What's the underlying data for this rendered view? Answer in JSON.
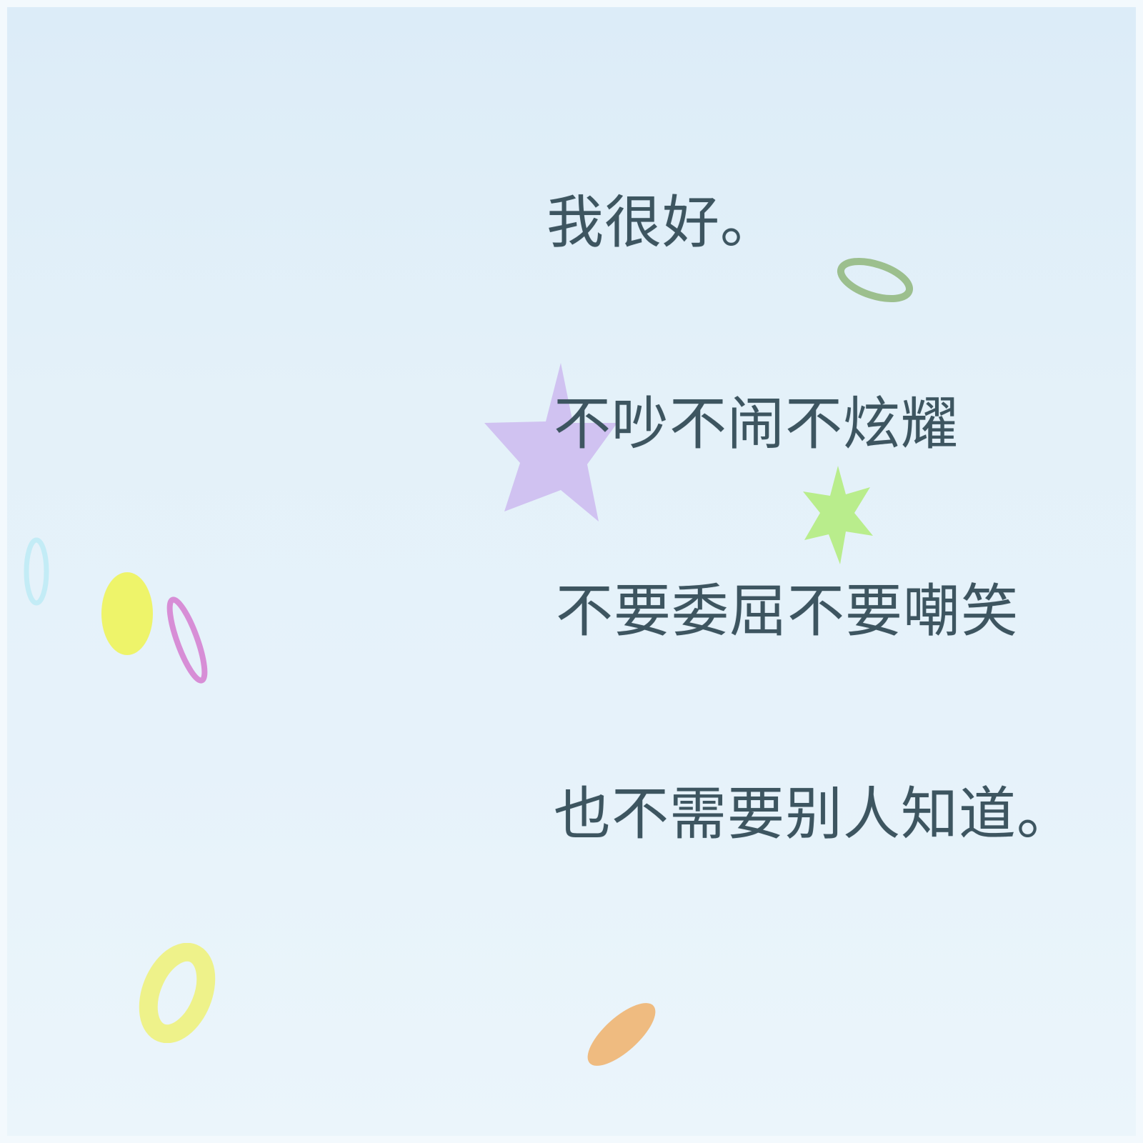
{
  "poem": {
    "lines": [
      "我很好。",
      "不吵不闹不炫耀",
      "不要委屈不要嘲笑",
      "也不需要别人知道。"
    ]
  },
  "colors": {
    "background_top": "#dcecf8",
    "background_bottom": "#ebf5fb",
    "text": "#3d5560",
    "star_purple": "#cdbdf0",
    "star_green": "#b4ec80",
    "ring_green": "#9cbf8e",
    "ring_yellow": "#eef28a",
    "dot_yellow": "#eef45a",
    "ring_pink": "#d78ed6",
    "ring_cyan": "#c3ecf6",
    "ellipse_orange": "#f0b06a"
  },
  "decorations": [
    "star-purple-icon",
    "star-green-icon",
    "ring-green-icon",
    "ring-cyan-icon",
    "dot-yellow-icon",
    "ring-pink-icon",
    "ring-yellow-icon",
    "ellipse-orange-icon"
  ]
}
